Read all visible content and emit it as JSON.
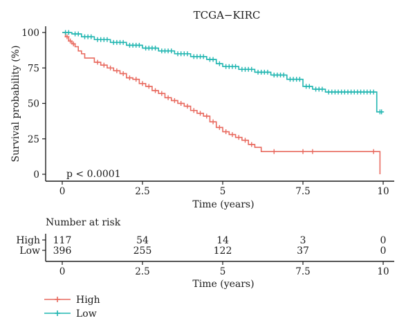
{
  "chart_data": {
    "type": "line",
    "title": "TCGA−KIRC",
    "xlabel": "Time (years)",
    "ylabel": "Survival probability (%)",
    "xlim": [
      0,
      10
    ],
    "ylim": [
      0,
      100
    ],
    "x_ticks": [
      0,
      2.5,
      5,
      7.5,
      10
    ],
    "y_ticks": [
      0,
      25,
      50,
      75,
      100
    ],
    "x_tick_labels": [
      "0",
      "2.5",
      "5",
      "7.5",
      "10"
    ],
    "y_tick_labels": [
      "0",
      "25",
      "50",
      "75",
      "100"
    ],
    "annotation": "p < 0.0001",
    "series": [
      {
        "name": "High",
        "color": "#e8695e",
        "steps": [
          [
            0,
            100
          ],
          [
            0.1,
            97
          ],
          [
            0.2,
            94
          ],
          [
            0.3,
            92
          ],
          [
            0.4,
            90
          ],
          [
            0.5,
            87
          ],
          [
            0.6,
            85
          ],
          [
            0.7,
            82
          ],
          [
            0.9,
            82
          ],
          [
            1.0,
            79
          ],
          [
            1.2,
            77
          ],
          [
            1.4,
            75
          ],
          [
            1.6,
            73
          ],
          [
            1.8,
            71
          ],
          [
            2.0,
            68
          ],
          [
            2.2,
            67
          ],
          [
            2.4,
            64
          ],
          [
            2.6,
            62
          ],
          [
            2.8,
            59
          ],
          [
            3.0,
            57
          ],
          [
            3.2,
            54
          ],
          [
            3.4,
            52
          ],
          [
            3.6,
            50
          ],
          [
            3.8,
            48
          ],
          [
            4.0,
            45
          ],
          [
            4.2,
            43
          ],
          [
            4.4,
            41
          ],
          [
            4.6,
            37
          ],
          [
            4.8,
            33
          ],
          [
            5.0,
            30
          ],
          [
            5.2,
            28
          ],
          [
            5.4,
            26
          ],
          [
            5.6,
            24
          ],
          [
            5.8,
            21
          ],
          [
            6.0,
            19
          ],
          [
            6.2,
            16
          ],
          [
            9.9,
            16
          ],
          [
            9.9,
            0
          ]
        ],
        "censor_x": [
          0.15,
          0.25,
          0.35,
          1.1,
          1.3,
          1.5,
          1.7,
          1.9,
          2.1,
          2.3,
          2.5,
          2.7,
          2.9,
          3.1,
          3.3,
          3.5,
          3.7,
          3.9,
          4.1,
          4.3,
          4.5,
          4.7,
          4.9,
          5.1,
          5.3,
          5.5,
          5.7,
          5.9,
          6.6,
          7.5,
          7.8,
          9.7
        ],
        "risk": [
          117,
          54,
          14,
          3,
          0
        ]
      },
      {
        "name": "Low",
        "color": "#1fb5b0",
        "steps": [
          [
            0,
            100
          ],
          [
            0.3,
            99
          ],
          [
            0.6,
            97
          ],
          [
            1.0,
            95
          ],
          [
            1.5,
            93
          ],
          [
            2.0,
            91
          ],
          [
            2.5,
            89
          ],
          [
            3.0,
            87
          ],
          [
            3.5,
            85
          ],
          [
            4.0,
            83
          ],
          [
            4.5,
            81
          ],
          [
            4.8,
            78
          ],
          [
            5.0,
            76
          ],
          [
            5.5,
            74
          ],
          [
            6.0,
            72
          ],
          [
            6.5,
            70
          ],
          [
            7.0,
            67
          ],
          [
            7.5,
            62
          ],
          [
            7.8,
            60
          ],
          [
            8.2,
            58
          ],
          [
            9.8,
            58
          ],
          [
            9.8,
            44
          ],
          [
            10.0,
            44
          ]
        ],
        "censor_x": [
          0.1,
          0.2,
          0.4,
          0.5,
          0.7,
          0.8,
          0.9,
          1.1,
          1.2,
          1.3,
          1.4,
          1.6,
          1.7,
          1.8,
          1.9,
          2.1,
          2.2,
          2.3,
          2.4,
          2.6,
          2.7,
          2.8,
          2.9,
          3.1,
          3.2,
          3.3,
          3.4,
          3.6,
          3.7,
          3.8,
          3.9,
          4.1,
          4.2,
          4.3,
          4.4,
          4.6,
          4.7,
          4.9,
          5.1,
          5.2,
          5.3,
          5.4,
          5.6,
          5.7,
          5.8,
          5.9,
          6.1,
          6.2,
          6.3,
          6.4,
          6.6,
          6.7,
          6.8,
          6.9,
          7.1,
          7.2,
          7.3,
          7.4,
          7.6,
          7.7,
          7.9,
          8.0,
          8.1,
          8.3,
          8.4,
          8.5,
          8.6,
          8.7,
          8.8,
          8.9,
          9.0,
          9.1,
          9.2,
          9.3,
          9.4,
          9.5,
          9.6,
          9.7,
          9.9,
          9.95
        ],
        "risk": [
          396,
          255,
          122,
          37,
          0
        ]
      }
    ],
    "risk_table": {
      "title": "Number at risk",
      "xlabel": "Time (years)",
      "row_labels": [
        "High",
        "Low"
      ]
    },
    "legend": {
      "position": "bottom-left",
      "items": [
        "High",
        "Low"
      ]
    }
  }
}
